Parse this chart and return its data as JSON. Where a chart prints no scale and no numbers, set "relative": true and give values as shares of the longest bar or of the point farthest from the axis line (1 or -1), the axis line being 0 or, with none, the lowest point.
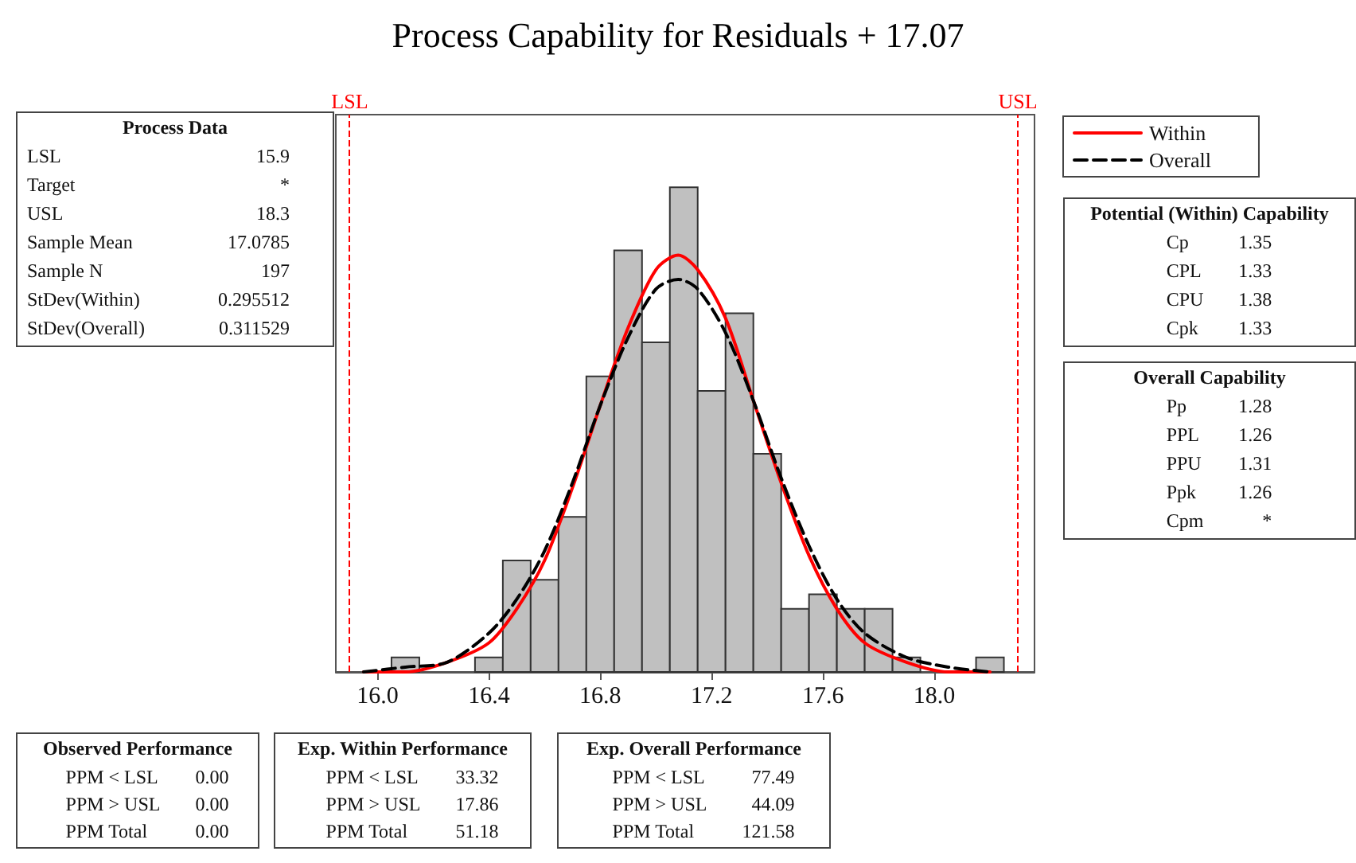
{
  "chart_data": [
    {
      "type": "histogram",
      "title": "Process Capability for Residuals + 17.07",
      "relative": true,
      "color": "#c0c0c0",
      "bins": [
        16.05,
        16.15,
        16.25,
        16.35,
        16.45,
        16.55,
        16.65,
        16.75,
        16.85,
        16.95,
        17.05,
        17.15,
        17.25,
        17.35,
        17.45,
        17.55,
        17.65,
        17.75,
        17.85,
        17.95,
        18.05,
        18.15,
        18.25
      ],
      "values": [
        0.03,
        0,
        0,
        0.03,
        0.23,
        0.19,
        0.32,
        0.61,
        0.87,
        0.68,
        1,
        0.58,
        0.74,
        0.45,
        0.13,
        0.16,
        0.13,
        0.13,
        0.03,
        0,
        0,
        0.03
      ],
      "series": [
        {
          "type": "line",
          "name": "Within",
          "color": "#ff0000",
          "line_style": "solid",
          "x": [
            15.95,
            16.1,
            16.25,
            16.4,
            16.5,
            16.6,
            16.7,
            16.8,
            16.9,
            17.0,
            17.08,
            17.15,
            17.25,
            17.35,
            17.45,
            17.55,
            17.65,
            17.75,
            17.9,
            18.05,
            18.2
          ],
          "values": [
            0,
            0,
            0.02,
            0.06,
            0.13,
            0.23,
            0.38,
            0.55,
            0.71,
            0.83,
            0.86,
            0.83,
            0.73,
            0.56,
            0.39,
            0.24,
            0.13,
            0.06,
            0.02,
            0,
            0
          ]
        },
        {
          "type": "line",
          "name": "Overall",
          "color": "#000000",
          "line_style": "dashed",
          "x": [
            15.95,
            16.1,
            16.25,
            16.4,
            16.5,
            16.6,
            16.7,
            16.8,
            16.9,
            17.0,
            17.08,
            17.15,
            17.25,
            17.35,
            17.45,
            17.55,
            17.65,
            17.75,
            17.9,
            18.05,
            18.2
          ],
          "values": [
            0,
            0.01,
            0.02,
            0.08,
            0.15,
            0.25,
            0.39,
            0.55,
            0.69,
            0.79,
            0.81,
            0.79,
            0.7,
            0.56,
            0.4,
            0.26,
            0.15,
            0.08,
            0.03,
            0.01,
            0
          ]
        }
      ],
      "xlim": [
        15.85,
        18.36
      ],
      "xticks": [
        {
          "value": 16,
          "label": "16.0"
        },
        {
          "value": 16.4,
          "label": "16.4"
        },
        {
          "value": 16.8,
          "label": "16.8"
        },
        {
          "value": 17.2,
          "label": "17.2"
        },
        {
          "value": 17.6,
          "label": "17.6"
        },
        {
          "value": 18,
          "label": "18.0"
        }
      ],
      "ref_lines": [
        {
          "axis": "x",
          "value": 15.9,
          "label": "LSL",
          "color": "#ff0000",
          "line_style": "dashed"
        },
        {
          "axis": "x",
          "value": 18.3,
          "label": "USL",
          "color": "#ff0000",
          "line_style": "dashed"
        }
      ],
      "legend": "top right",
      "grid": false,
      "marker": "none"
    },
    {
      "type": "other",
      "title": "Process Data",
      "annotations": [
        "LSL",
        "15.9",
        "Target",
        "*",
        "USL",
        "18.3",
        "Sample Mean",
        "17.0785",
        "Sample N",
        "197",
        "StDev(Within)",
        "0.295512",
        "StDev(Overall)",
        "0.311529"
      ]
    },
    {
      "type": "other",
      "title": "Potential (Within) Capability",
      "annotations": [
        "Cp",
        "1.35",
        "CPL",
        "1.33",
        "CPU",
        "1.38",
        "Cpk",
        "1.33"
      ]
    },
    {
      "type": "other",
      "title": "Overall Capability",
      "annotations": [
        "Pp",
        "1.28",
        "PPL",
        "1.26",
        "PPU",
        "1.31",
        "Ppk",
        "1.26",
        "Cpm",
        "*"
      ]
    },
    {
      "type": "other",
      "title": "Observed Performance",
      "annotations": [
        "PPM < LSL",
        "0.00",
        "PPM > USL",
        "0.00",
        "PPM Total",
        "0.00"
      ]
    },
    {
      "type": "other",
      "title": "Exp. Within Performance",
      "annotations": [
        "PPM < LSL",
        "33.32",
        "PPM > USL",
        "17.86",
        "PPM Total",
        "51.18"
      ]
    },
    {
      "type": "other",
      "title": "Exp. Overall Performance",
      "annotations": [
        "PPM < LSL",
        "77.49",
        "PPM > USL",
        "44.09",
        "PPM Total",
        "121.58"
      ]
    }
  ]
}
